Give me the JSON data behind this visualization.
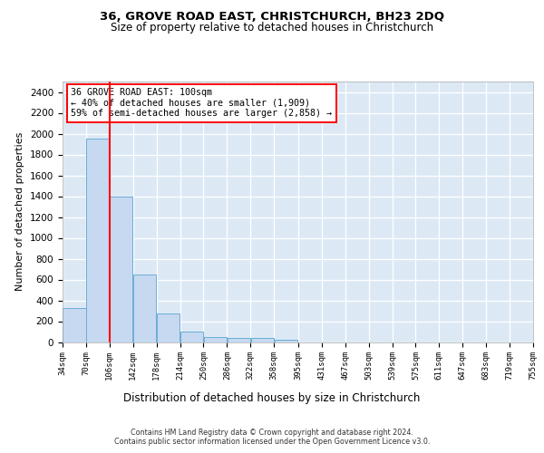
{
  "title": "36, GROVE ROAD EAST, CHRISTCHURCH, BH23 2DQ",
  "subtitle": "Size of property relative to detached houses in Christchurch",
  "xlabel": "Distribution of detached houses by size in Christchurch",
  "ylabel": "Number of detached properties",
  "bar_fill": "#c6d9f0",
  "bar_edge": "#6baed6",
  "bg_color": "#dce9f5",
  "grid_color": "#ffffff",
  "bin_edges": [
    34,
    70,
    106,
    142,
    178,
    214,
    250,
    286,
    322,
    358,
    395,
    431,
    467,
    503,
    539,
    575,
    611,
    647,
    683,
    719,
    755
  ],
  "bin_labels": [
    "34sqm",
    "70sqm",
    "106sqm",
    "142sqm",
    "178sqm",
    "214sqm",
    "250sqm",
    "286sqm",
    "322sqm",
    "358sqm",
    "395sqm",
    "431sqm",
    "467sqm",
    "503sqm",
    "539sqm",
    "575sqm",
    "611sqm",
    "647sqm",
    "683sqm",
    "719sqm",
    "755sqm"
  ],
  "bar_heights": [
    325,
    1950,
    1400,
    650,
    270,
    100,
    50,
    40,
    35,
    20,
    0,
    0,
    0,
    0,
    0,
    0,
    0,
    0,
    0,
    0
  ],
  "ylim": [
    0,
    2500
  ],
  "yticks": [
    0,
    200,
    400,
    600,
    800,
    1000,
    1200,
    1400,
    1600,
    1800,
    2000,
    2200,
    2400
  ],
  "red_line_x": 106,
  "ann_title": "36 GROVE ROAD EAST: 100sqm",
  "ann_line1": "← 40% of detached houses are smaller (1,909)",
  "ann_line2": "59% of semi-detached houses are larger (2,858) →",
  "footer_line1": "Contains HM Land Registry data © Crown copyright and database right 2024.",
  "footer_line2": "Contains public sector information licensed under the Open Government Licence v3.0."
}
